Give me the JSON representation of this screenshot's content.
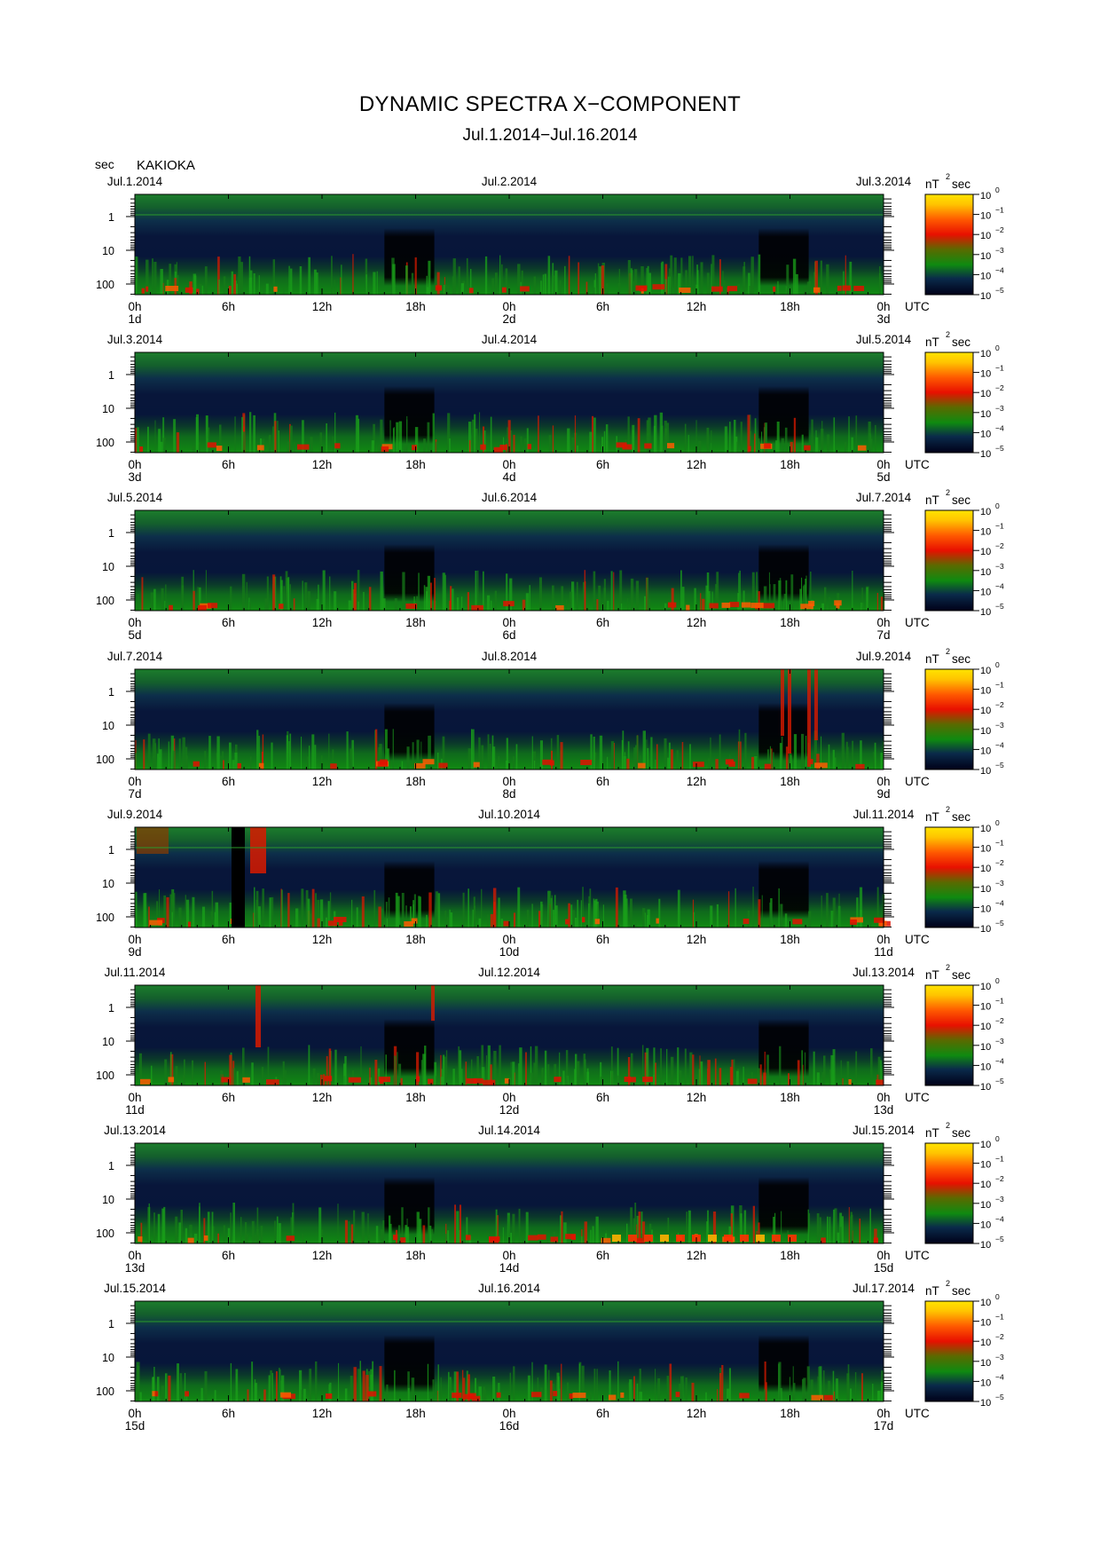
{
  "header": {
    "title": "DYNAMIC SPECTRA X−COMPONENT",
    "subtitle": "Jul.1.2014−Jul.16.2014",
    "sec_label": "sec",
    "station": "KAKIOKA"
  },
  "colorbar": {
    "unit_prefix": "nT",
    "unit_sup": "2",
    "unit_suffix": "sec",
    "base": "10",
    "exponents": [
      "0",
      "−1",
      "−2",
      "−3",
      "−4",
      "−5"
    ],
    "stops": [
      {
        "pos": 0.0,
        "color": "#ffe400"
      },
      {
        "pos": 0.1,
        "color": "#ffc400"
      },
      {
        "pos": 0.25,
        "color": "#ff5a00"
      },
      {
        "pos": 0.4,
        "color": "#e81000"
      },
      {
        "pos": 0.55,
        "color": "#5a6a00"
      },
      {
        "pos": 0.7,
        "color": "#0f8a10"
      },
      {
        "pos": 0.84,
        "color": "#0a2a4a"
      },
      {
        "pos": 1.0,
        "color": "#000018"
      }
    ]
  },
  "chart_data": {
    "type": "heatmap",
    "title": "DYNAMIC SPECTRA X−COMPONENT",
    "subtitle": "Jul.1.2014−Jul.16.2014",
    "ylabel": "sec",
    "y_scale": "log",
    "y_ticks": [
      "1",
      "10",
      "100"
    ],
    "x_tick_labels": [
      "0h",
      "6h",
      "12h",
      "18h",
      "0h",
      "6h",
      "12h",
      "18h",
      "0h"
    ],
    "utc_label": "UTC",
    "color_scale": "log",
    "color_range": [
      1e-05,
      1
    ],
    "panels": [
      {
        "date_left": "Jul.1.2014",
        "date_mid": "Jul.2.2014",
        "date_right": "Jul.3.2014",
        "day_labels": [
          "1d",
          "2d",
          "3d"
        ]
      },
      {
        "date_left": "Jul.3.2014",
        "date_mid": "Jul.4.2014",
        "date_right": "Jul.5.2014",
        "day_labels": [
          "3d",
          "4d",
          "5d"
        ]
      },
      {
        "date_left": "Jul.5.2014",
        "date_mid": "Jul.6.2014",
        "date_right": "Jul.7.2014",
        "day_labels": [
          "5d",
          "6d",
          "7d"
        ]
      },
      {
        "date_left": "Jul.7.2014",
        "date_mid": "Jul.8.2014",
        "date_right": "Jul.9.2014",
        "day_labels": [
          "7d",
          "8d",
          "9d"
        ]
      },
      {
        "date_left": "Jul.9.2014",
        "date_mid": "Jul.10.2014",
        "date_right": "Jul.11.2014",
        "day_labels": [
          "9d",
          "10d",
          "11d"
        ]
      },
      {
        "date_left": "Jul.11.2014",
        "date_mid": "Jul.12.2014",
        "date_right": "Jul.13.2014",
        "day_labels": [
          "11d",
          "12d",
          "13d"
        ]
      },
      {
        "date_left": "Jul.13.2014",
        "date_mid": "Jul.14.2014",
        "date_right": "Jul.15.2014",
        "day_labels": [
          "13d",
          "14d",
          "15d"
        ]
      },
      {
        "date_left": "Jul.15.2014",
        "date_mid": "Jul.16.2014",
        "date_right": "Jul.17.2014",
        "day_labels": [
          "15d",
          "16d",
          "17d"
        ]
      }
    ]
  }
}
